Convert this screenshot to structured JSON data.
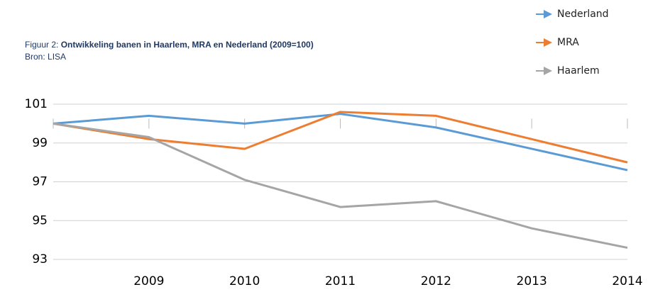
{
  "chart_data": {
    "type": "line",
    "figure_label": "Figuur 2:",
    "title": "Ontwikkeling banen in Haarlem, MRA en Nederland (2009=100)",
    "source": "Bron: LISA",
    "categories": [
      null,
      "2009",
      "2010",
      "2011",
      "2012",
      "2013",
      "2014"
    ],
    "series": [
      {
        "name": "Nederland",
        "color": "#5b9bd5",
        "values": [
          100,
          100.4,
          100.0,
          100.5,
          99.8,
          98.7,
          97.6
        ]
      },
      {
        "name": "MRA",
        "color": "#ed7d31",
        "values": [
          100,
          99.2,
          98.7,
          100.6,
          100.4,
          99.2,
          98.0
        ]
      },
      {
        "name": "Haarlem",
        "color": "#a5a5a5",
        "values": [
          100,
          99.3,
          97.1,
          95.7,
          96.0,
          94.6,
          93.6
        ]
      }
    ],
    "ylim": [
      93,
      101
    ],
    "yticks": [
      93,
      95,
      97,
      99,
      101
    ],
    "grid": true,
    "legend": "top-right"
  }
}
